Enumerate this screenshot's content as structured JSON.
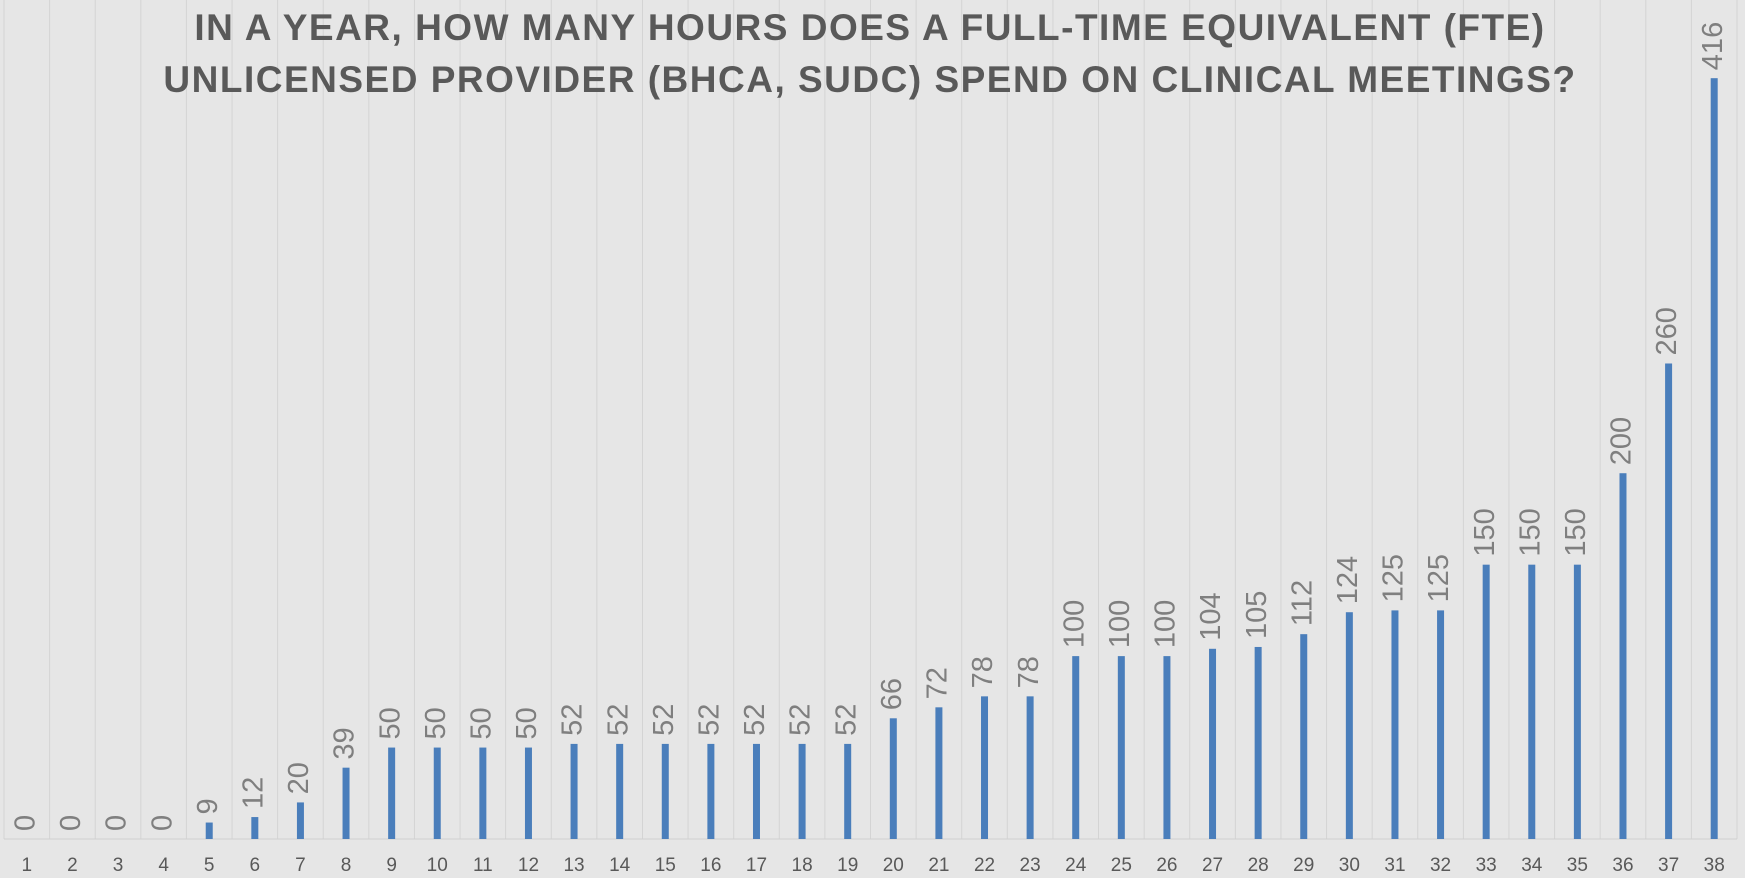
{
  "chart_data": {
    "type": "bar",
    "title": "IN A YEAR, HOW MANY HOURS DOES A FULL-TIME EQUIVALENT (FTE) UNLICENSED PROVIDER (BHCA, SUDC) SPEND ON CLINICAL MEETINGS?",
    "categories": [
      "1",
      "2",
      "3",
      "4",
      "5",
      "6",
      "7",
      "8",
      "9",
      "10",
      "11",
      "12",
      "13",
      "14",
      "15",
      "16",
      "17",
      "18",
      "19",
      "20",
      "21",
      "22",
      "23",
      "24",
      "25",
      "26",
      "27",
      "28",
      "29",
      "30",
      "31",
      "32",
      "33",
      "34",
      "35",
      "36",
      "37",
      "38"
    ],
    "values": [
      0,
      0,
      0,
      0,
      9,
      12,
      20,
      39,
      50,
      50,
      50,
      50,
      52,
      52,
      52,
      52,
      52,
      52,
      52,
      66,
      72,
      78,
      78,
      100,
      100,
      100,
      104,
      105,
      112,
      124,
      125,
      125,
      150,
      150,
      150,
      200,
      260,
      416
    ],
    "color": "#4a7ebb",
    "ylim": [
      0,
      450
    ],
    "grid": true
  }
}
